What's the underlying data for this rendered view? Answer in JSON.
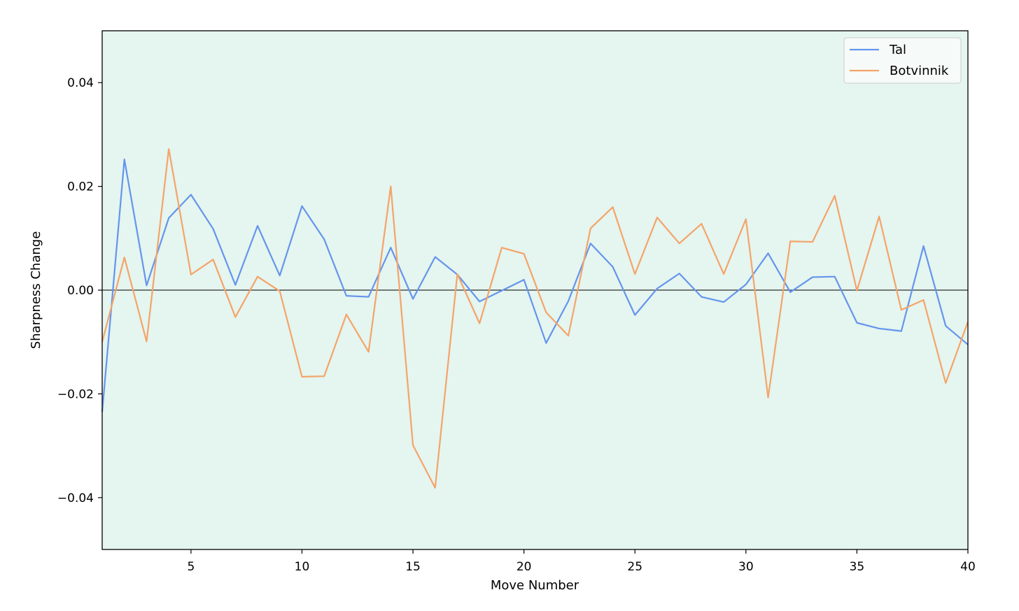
{
  "chart_data": {
    "type": "line",
    "title": "",
    "xlabel": "Move Number",
    "ylabel": "Sharpness Change",
    "xlim": [
      1,
      40
    ],
    "ylim": [
      -0.05,
      0.05
    ],
    "x_ticks": [
      5,
      10,
      15,
      20,
      25,
      30,
      35,
      40
    ],
    "x_tick_labels": [
      "5",
      "10",
      "15",
      "20",
      "25",
      "30",
      "35",
      "40"
    ],
    "y_ticks": [
      0.04,
      0.02,
      0.0,
      -0.02,
      -0.04
    ],
    "y_tick_labels": [
      "0.04",
      "0.02",
      "0.00",
      "−0.02",
      "−0.04"
    ],
    "grid": false,
    "zero_line": true,
    "background_color": "#e5f5ef",
    "legend_position": "top-right",
    "x": [
      1,
      2,
      3,
      4,
      5,
      6,
      7,
      8,
      9,
      10,
      11,
      12,
      13,
      14,
      15,
      16,
      17,
      18,
      19,
      20,
      21,
      22,
      23,
      24,
      25,
      26,
      27,
      28,
      29,
      30,
      31,
      32,
      33,
      34,
      35,
      36,
      37,
      38,
      39,
      40
    ],
    "series": [
      {
        "name": "Tal",
        "color": "#6495ed",
        "values": [
          -0.0235,
          0.0252,
          0.0009,
          0.0139,
          0.0184,
          0.0118,
          0.001,
          0.0124,
          0.0028,
          0.0162,
          0.0098,
          -0.0011,
          -0.0013,
          0.0082,
          -0.0017,
          0.0064,
          0.003,
          -0.0022,
          -0.0001,
          0.002,
          -0.0102,
          -0.0021,
          0.009,
          0.0045,
          -0.0048,
          0.0003,
          0.0032,
          -0.0013,
          -0.0023,
          0.0011,
          0.0071,
          -0.0004,
          0.0025,
          0.0026,
          -0.0063,
          -0.0074,
          -0.0079,
          0.0085,
          -0.0069,
          -0.0105
        ]
      },
      {
        "name": "Botvinnik",
        "color": "#f4a46a",
        "values": [
          -0.01,
          0.0063,
          -0.0099,
          0.0272,
          0.003,
          0.0059,
          -0.0052,
          0.0026,
          -0.0002,
          -0.0167,
          -0.0166,
          -0.0047,
          -0.0119,
          0.02,
          -0.0299,
          -0.0381,
          0.0031,
          -0.0064,
          0.0082,
          0.007,
          -0.0043,
          -0.0088,
          0.0119,
          0.016,
          0.0031,
          0.014,
          0.009,
          0.0128,
          0.0031,
          0.0137,
          -0.0207,
          0.0094,
          0.0093,
          0.0182,
          -0.0001,
          0.0142,
          -0.0038,
          -0.0019,
          -0.0179,
          -0.0061
        ]
      }
    ]
  }
}
